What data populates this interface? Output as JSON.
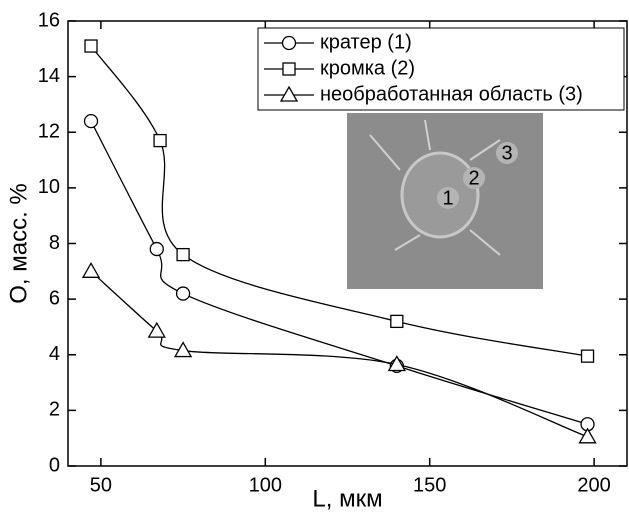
{
  "chart_data": {
    "type": "line",
    "xlabel": "L, мкм",
    "ylabel": "O, масс. %",
    "xlim": [
      40,
      210
    ],
    "ylim": [
      0,
      16
    ],
    "xticks": [
      50,
      100,
      150,
      200
    ],
    "yticks": [
      0,
      2,
      4,
      6,
      8,
      10,
      12,
      14,
      16
    ],
    "grid": false,
    "legend": "upper right",
    "smooth": true,
    "series": [
      {
        "name": "кратер (1)",
        "color": "#000000",
        "marker": "circle",
        "x": [
          47,
          67,
          75,
          140,
          198
        ],
        "values": [
          12.4,
          7.8,
          6.2,
          3.6,
          1.5
        ]
      },
      {
        "name": "кромка (2)",
        "color": "#000000",
        "marker": "square",
        "x": [
          47,
          68,
          75,
          140,
          198
        ],
        "values": [
          15.1,
          11.7,
          7.6,
          5.2,
          3.95
        ]
      },
      {
        "name": "необработанная область (3)",
        "color": "#000000",
        "marker": "triangle",
        "x": [
          47,
          67,
          75,
          140,
          198
        ],
        "values": [
          7.0,
          4.85,
          4.15,
          3.65,
          1.05
        ]
      }
    ],
    "inset_labels": [
      "1",
      "2",
      "3"
    ]
  }
}
